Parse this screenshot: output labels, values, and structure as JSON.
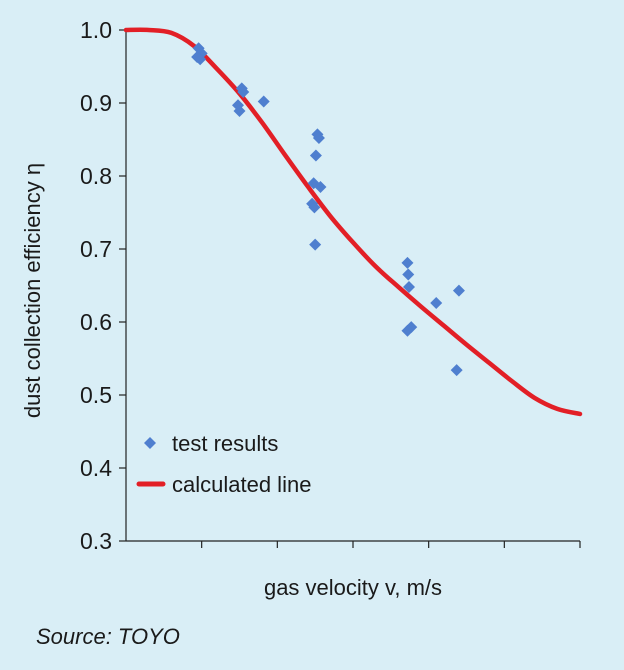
{
  "colors": {
    "background": "#d9eef6",
    "points": "#4f7fcf",
    "line": "#e21f26",
    "axis": "#222222"
  },
  "source": "Source: TOYO",
  "chart_data": {
    "type": "scatter",
    "xlabel": "gas velocity v, m/s",
    "ylabel": "dust collection efficiency η",
    "ylim": [
      0.3,
      1.0
    ],
    "yticks": [
      1.0,
      0.9,
      0.8,
      0.7,
      0.6,
      0.5,
      0.4,
      0.3
    ],
    "ytick_labels": [
      "1.0",
      "0.9",
      "0.8",
      "0.7",
      "0.6",
      "0.5",
      "0.4",
      "0.3"
    ],
    "x_ticks_unlabeled": 6,
    "xlim": [
      0,
      6
    ],
    "grid": false,
    "legend_position": "lower-left",
    "series": [
      {
        "name": "test results",
        "kind": "scatter",
        "marker": "diamond",
        "points": [
          {
            "x": 0.96,
            "y": 0.975
          },
          {
            "x": 1.0,
            "y": 0.968
          },
          {
            "x": 0.98,
            "y": 0.96
          },
          {
            "x": 0.94,
            "y": 0.963
          },
          {
            "x": 1.53,
            "y": 0.92
          },
          {
            "x": 1.55,
            "y": 0.915
          },
          {
            "x": 1.48,
            "y": 0.897
          },
          {
            "x": 1.5,
            "y": 0.889
          },
          {
            "x": 1.82,
            "y": 0.902
          },
          {
            "x": 2.53,
            "y": 0.857
          },
          {
            "x": 2.55,
            "y": 0.852
          },
          {
            "x": 2.51,
            "y": 0.828
          },
          {
            "x": 2.48,
            "y": 0.79
          },
          {
            "x": 2.57,
            "y": 0.785
          },
          {
            "x": 2.46,
            "y": 0.762
          },
          {
            "x": 2.49,
            "y": 0.757
          },
          {
            "x": 2.5,
            "y": 0.706
          },
          {
            "x": 3.72,
            "y": 0.681
          },
          {
            "x": 3.73,
            "y": 0.665
          },
          {
            "x": 3.74,
            "y": 0.648
          },
          {
            "x": 3.77,
            "y": 0.593
          },
          {
            "x": 3.72,
            "y": 0.588
          },
          {
            "x": 4.1,
            "y": 0.626
          },
          {
            "x": 4.4,
            "y": 0.643
          },
          {
            "x": 4.37,
            "y": 0.534
          }
        ]
      },
      {
        "name": "calculated line",
        "kind": "line",
        "points": [
          {
            "x": 0.0,
            "y": 1.0
          },
          {
            "x": 0.3,
            "y": 1.0
          },
          {
            "x": 0.6,
            "y": 0.996
          },
          {
            "x": 0.9,
            "y": 0.978
          },
          {
            "x": 1.2,
            "y": 0.947
          },
          {
            "x": 1.5,
            "y": 0.913
          },
          {
            "x": 1.8,
            "y": 0.873
          },
          {
            "x": 2.1,
            "y": 0.829
          },
          {
            "x": 2.4,
            "y": 0.786
          },
          {
            "x": 2.7,
            "y": 0.745
          },
          {
            "x": 3.0,
            "y": 0.709
          },
          {
            "x": 3.3,
            "y": 0.676
          },
          {
            "x": 3.6,
            "y": 0.648
          },
          {
            "x": 3.9,
            "y": 0.621
          },
          {
            "x": 4.2,
            "y": 0.595
          },
          {
            "x": 4.5,
            "y": 0.569
          },
          {
            "x": 4.8,
            "y": 0.544
          },
          {
            "x": 5.1,
            "y": 0.519
          },
          {
            "x": 5.4,
            "y": 0.496
          },
          {
            "x": 5.7,
            "y": 0.481
          },
          {
            "x": 6.0,
            "y": 0.474
          }
        ]
      }
    ]
  }
}
